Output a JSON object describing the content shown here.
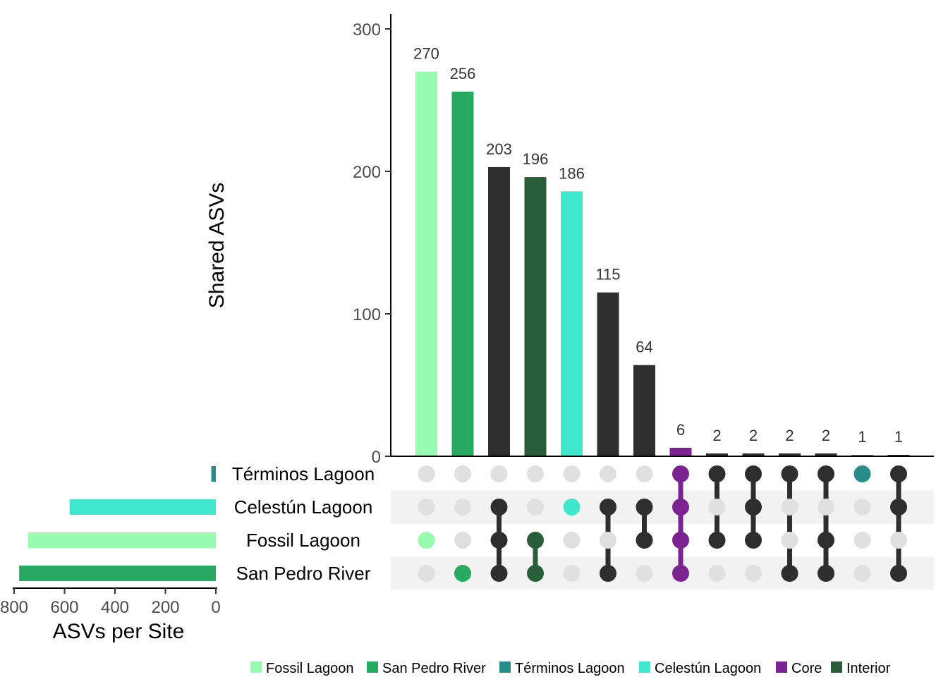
{
  "chart_data": {
    "type": "bar",
    "upset": true,
    "sets": [
      "Términos Lagoon",
      "Celestún Lagoon",
      "Fossil Lagoon",
      "San Pedro River"
    ],
    "intersections": {
      "values": [
        270,
        256,
        203,
        196,
        186,
        115,
        64,
        6,
        2,
        2,
        2,
        2,
        1,
        1
      ],
      "labels": [
        "270",
        "256",
        "203",
        "196",
        "186",
        "115",
        "64",
        "6",
        "2",
        "2",
        "2",
        "2",
        "1",
        "1"
      ],
      "members": [
        [
          "Fossil Lagoon"
        ],
        [
          "San Pedro River"
        ],
        [
          "Celestún Lagoon",
          "Fossil Lagoon",
          "San Pedro River"
        ],
        [
          "Fossil Lagoon",
          "San Pedro River"
        ],
        [
          "Celestún Lagoon"
        ],
        [
          "Celestún Lagoon",
          "San Pedro River"
        ],
        [
          "Celestún Lagoon",
          "Fossil Lagoon"
        ],
        [
          "Términos Lagoon",
          "Celestún Lagoon",
          "Fossil Lagoon",
          "San Pedro River"
        ],
        [
          "Términos Lagoon",
          "Fossil Lagoon"
        ],
        [
          "Términos Lagoon",
          "Celestún Lagoon",
          "Fossil Lagoon"
        ],
        [
          "Términos Lagoon",
          "San Pedro River"
        ],
        [
          "Términos Lagoon",
          "Fossil Lagoon",
          "San Pedro River"
        ],
        [
          "Términos Lagoon"
        ],
        [
          "Términos Lagoon",
          "Celestún Lagoon",
          "San Pedro River"
        ]
      ],
      "colors": [
        "#98fbb0",
        "#27a961",
        "#2e2e2e",
        "#2a5e3a",
        "#3de8cc",
        "#2e2e2e",
        "#2e2e2e",
        "#7b2491",
        "#2e2e2e",
        "#2e2e2e",
        "#2e2e2e",
        "#2e2e2e",
        "#288c8a",
        "#2e2e2e"
      ]
    },
    "ylabel": "Shared ASVs",
    "ylim": [
      0,
      310
    ],
    "yticks": [
      "0",
      "100",
      "200",
      "300"
    ],
    "set_sizes": {
      "values": [
        18,
        580,
        745,
        780
      ],
      "colors": [
        "#288c8a",
        "#3de8cc",
        "#98fbb0",
        "#27a961"
      ],
      "xlabel": "ASVs per Site",
      "xlim": [
        0,
        800
      ],
      "xticks": [
        "800",
        "600",
        "400",
        "200",
        "0"
      ]
    },
    "legend": {
      "position": "bottom",
      "items": [
        {
          "label": "Fossil Lagoon",
          "color": "#98fbb0"
        },
        {
          "label": "San Pedro River",
          "color": "#27a961"
        },
        {
          "label": "Términos Lagoon",
          "color": "#288c8a"
        },
        {
          "label": "Celestún Lagoon",
          "color": "#3de8cc"
        },
        {
          "label": "Core",
          "color": "#7b2491"
        },
        {
          "label": "Interior",
          "color": "#2a5e3a"
        }
      ]
    },
    "matrix_colors": {
      "empty_dot": "#e0e0e0",
      "stripe": "#f2f2f2"
    }
  }
}
